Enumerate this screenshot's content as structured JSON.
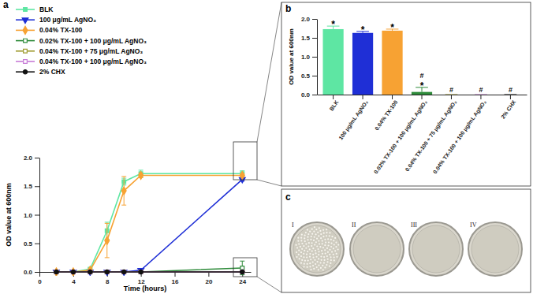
{
  "chart_data": [
    {
      "type": "line",
      "label": "a",
      "x_label": "Time (hours)",
      "y_label": "OD value at 600nm",
      "x": [
        2,
        4,
        6,
        8,
        10,
        12,
        24
      ],
      "xlim": [
        0,
        25
      ],
      "xticks": [
        0,
        4,
        8,
        12,
        16,
        20,
        24
      ],
      "ylim": [
        0,
        2
      ],
      "yticks": [
        {
          "value": 0,
          "label": "0.0"
        },
        {
          "value": 0.5,
          "label": "0.5"
        },
        {
          "value": 1,
          "label": "1.0"
        },
        {
          "value": 1.5,
          "label": "1.5"
        },
        {
          "value": 2,
          "label": "2.0"
        }
      ],
      "grid": false,
      "legend": "top-left",
      "series": [
        {
          "name": "BLK",
          "color": "#5ee6a3",
          "marker": "square",
          "values": [
            0,
            0,
            0.05,
            0.72,
            1.58,
            1.72,
            1.72
          ],
          "errors": [
            0,
            0,
            0.02,
            0.15,
            0.06,
            0.06,
            0.05
          ]
        },
        {
          "name": "100 μg/mL AgNO₃",
          "color": "#1f2fd6",
          "marker": "triangle-down",
          "values": [
            0,
            0,
            0,
            0,
            0,
            0.03,
            1.62
          ],
          "errors": [
            0,
            0,
            0,
            0,
            0,
            0.01,
            0.03
          ]
        },
        {
          "name": "0.04% TX-100",
          "color": "#f7a233",
          "marker": "diamond",
          "values": [
            0,
            0,
            0.03,
            0.55,
            1.42,
            1.69,
            1.69
          ],
          "errors": [
            0,
            0,
            0.02,
            0.3,
            0.25,
            0.04,
            0.03
          ]
        },
        {
          "name": "0.02% TX-100 + 100 μg/mL AgNO₃",
          "color": "#2e8b3a",
          "marker": "square-open",
          "values": [
            0,
            0,
            0,
            0,
            0,
            0,
            0.07
          ],
          "errors": [
            0,
            0,
            0,
            0,
            0,
            0,
            0.12
          ]
        },
        {
          "name": "0.04% TX-100 + 75 μg/mL AgNO₃",
          "color": "#9e9a2e",
          "marker": "square-open",
          "values": [
            0,
            0,
            0,
            0,
            0,
            0,
            0
          ],
          "errors": [
            0,
            0,
            0,
            0,
            0,
            0,
            0
          ]
        },
        {
          "name": "0.04% TX-100 + 100 μg/mL AgNO₃",
          "color": "#c77bd6",
          "marker": "square-open",
          "values": [
            0,
            0,
            0,
            0,
            0,
            0,
            0
          ],
          "errors": [
            0,
            0,
            0,
            0,
            0,
            0,
            0
          ]
        },
        {
          "name": "2% CHX",
          "color": "#111111",
          "marker": "circle",
          "values": [
            0,
            0,
            0,
            0,
            0,
            0,
            0
          ],
          "errors": [
            0,
            0,
            0,
            0,
            0,
            0,
            0
          ]
        }
      ]
    },
    {
      "type": "bar",
      "label": "b",
      "y_label": "OD value at 600nm",
      "categories": [
        "BLK",
        "100 μg/mL AgNO₃",
        "0.04% TX-100",
        "0.02% TX-100 + 100 μg/mL AgNO₃",
        "0.04% TX-100 + 75 μg/mL AgNO₃",
        "0.04% TX-100 + 100 μg/mL AgNO₃",
        "2% CHX"
      ],
      "values": [
        1.73,
        1.63,
        1.69,
        0.07,
        0,
        0,
        0
      ],
      "errors": [
        0.08,
        0.04,
        0.04,
        0.12,
        0,
        0,
        0
      ],
      "colors": [
        "#5ee6a3",
        "#1f2fd6",
        "#f7a233",
        "#2e8b3a",
        "#9e9a2e",
        "#c77bd6",
        "#111111"
      ],
      "star_labels": [
        "*",
        "*",
        "*",
        "*",
        null,
        null,
        null
      ],
      "hash_labels": [
        null,
        null,
        null,
        "#",
        "#",
        "#",
        "#"
      ],
      "ylim": [
        0,
        2
      ],
      "yticks": [
        {
          "value": 0,
          "label": "0.0"
        },
        {
          "value": 0.5,
          "label": "0.5"
        },
        {
          "value": 1,
          "label": "1.0"
        },
        {
          "value": 1.5,
          "label": "1.5"
        },
        {
          "value": 2,
          "label": "2.0"
        }
      ],
      "grid": false
    }
  ],
  "photos": {
    "label": "c",
    "dishes": [
      "I",
      "II",
      "III",
      "IV"
    ]
  }
}
